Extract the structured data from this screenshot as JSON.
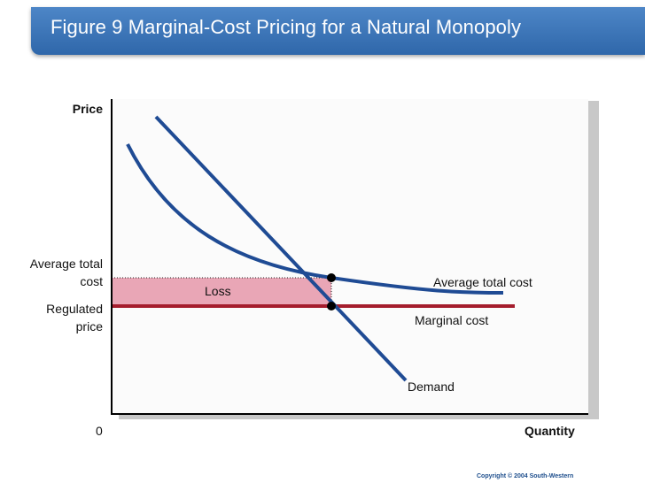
{
  "title": "Figure 9 Marginal-Cost Pricing for a Natural Monopoly",
  "axes": {
    "y_label": "Price",
    "x_label": "Quantity",
    "origin": "0"
  },
  "y_tick_labels": {
    "average_total_cost_line1": "Average total",
    "average_total_cost_line2": "cost",
    "regulated_price_line1": "Regulated",
    "regulated_price_line2": "price"
  },
  "curves": {
    "average_total_cost": "Average total cost",
    "marginal_cost": "Marginal cost",
    "demand": "Demand"
  },
  "region": {
    "loss": "Loss"
  },
  "colors": {
    "title_bar": "#3a73b8",
    "curve": "#1f4b94",
    "marginal_cost": "#a51d2d",
    "loss_fill": "#e9a6b6"
  },
  "copyright": "Copyright © 2004  South-Western"
}
